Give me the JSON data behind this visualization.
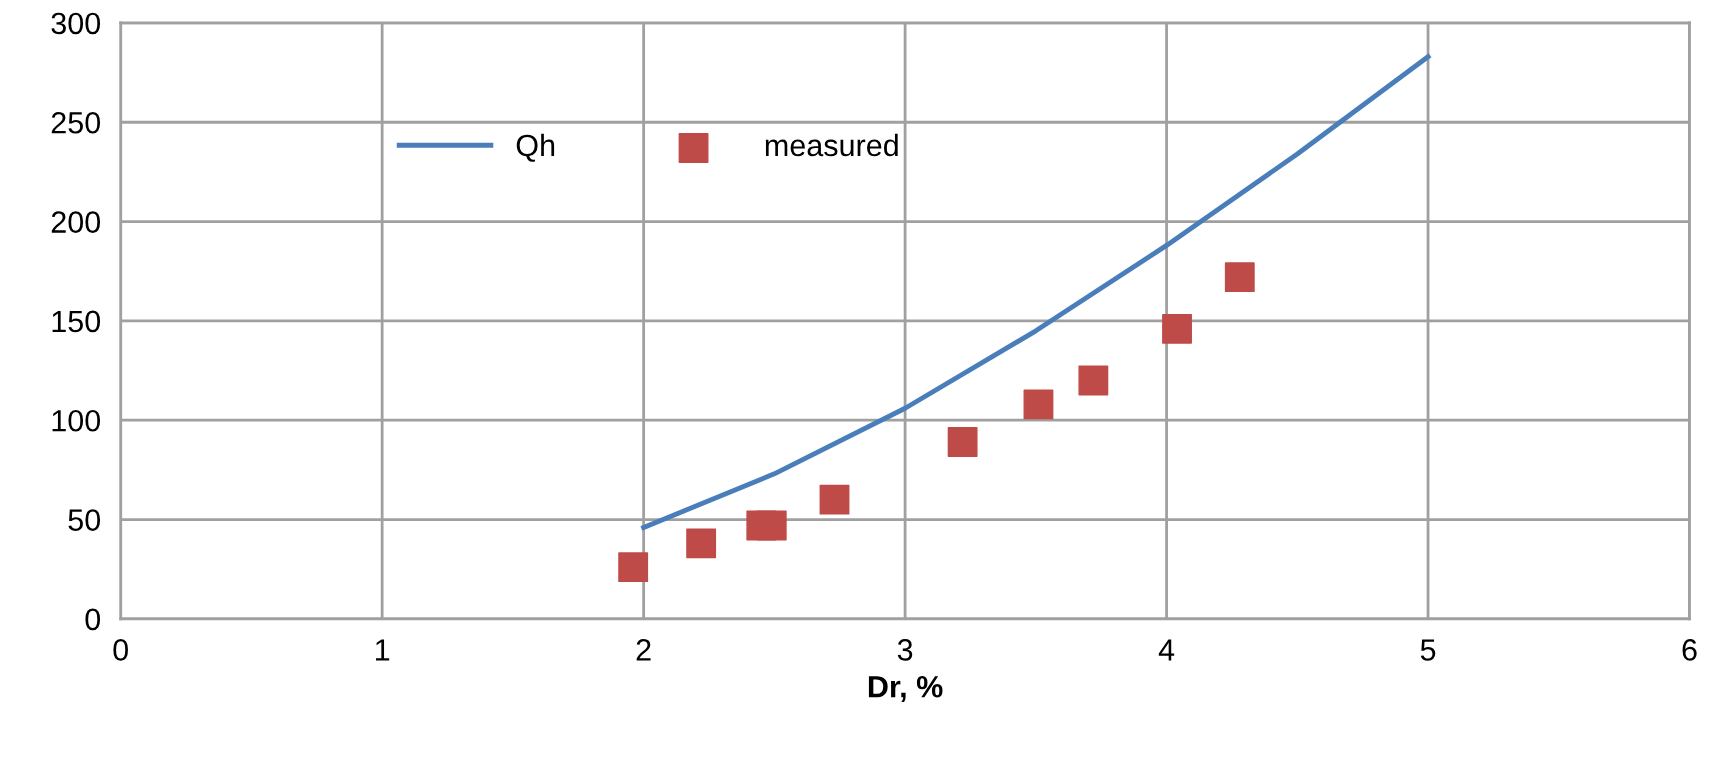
{
  "chart_data": {
    "type": "line",
    "xlabel": "Dr, %",
    "xlim": [
      0,
      6
    ],
    "xticks": [
      0,
      1,
      2,
      3,
      4,
      5,
      6
    ],
    "ylim": [
      0,
      300
    ],
    "yticks": [
      0,
      50,
      100,
      150,
      200,
      250,
      300
    ],
    "grid": true,
    "legend": "top left",
    "series": [
      {
        "name": "Qh",
        "color": "#4a7ebb",
        "marker": "none",
        "line_style": "solid",
        "x": [
          2.0,
          2.5,
          3.0,
          3.5,
          4.0,
          4.5,
          5.0
        ],
        "values": [
          46,
          73,
          106,
          145,
          188,
          234,
          283
        ]
      },
      {
        "name": "measured",
        "type": "scatter",
        "color": "#be4b48",
        "marker": "square",
        "x": [
          1.96,
          2.22,
          2.45,
          2.49,
          2.73,
          3.22,
          3.51,
          3.72,
          4.04,
          4.28
        ],
        "values": [
          26,
          38,
          47,
          47,
          60,
          89,
          108,
          120,
          146,
          172
        ]
      }
    ]
  }
}
